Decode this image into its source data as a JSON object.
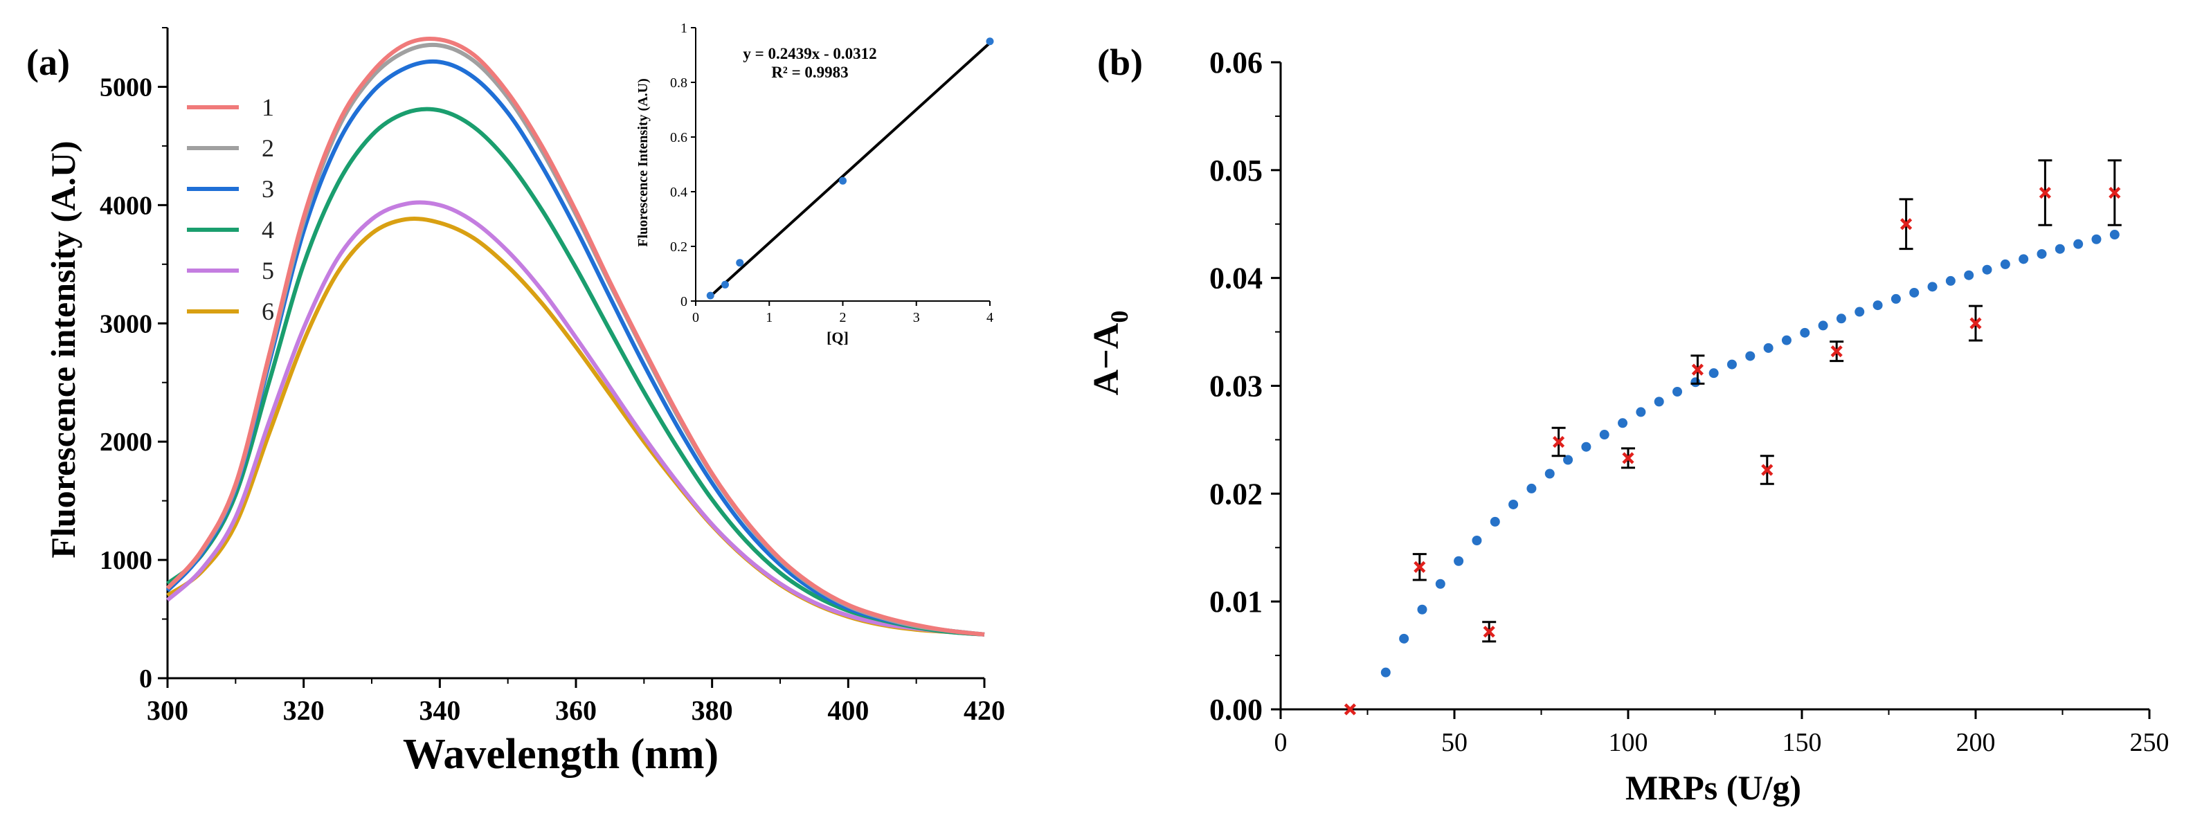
{
  "chart_data": [
    {
      "panel": "(a)",
      "type": "line",
      "title": "",
      "xlabel": "Wavelength (nm)",
      "ylabel": "Fluorescence intensity (A.U)",
      "xlim": [
        300,
        420
      ],
      "ylim": [
        0,
        5500
      ],
      "xticks": [
        300,
        320,
        340,
        360,
        380,
        400,
        420
      ],
      "yticks": [
        0,
        1000,
        2000,
        3000,
        4000,
        5000
      ],
      "legend_position": "top-left",
      "series": [
        {
          "name": "1",
          "color": "#f07a7a",
          "x": [
            300,
            305,
            310,
            315,
            320,
            325,
            330,
            335,
            340,
            345,
            350,
            355,
            360,
            365,
            370,
            375,
            380,
            385,
            390,
            395,
            400,
            405,
            410,
            415,
            420
          ],
          "values": [
            760,
            1080,
            1640,
            2750,
            3900,
            4680,
            5120,
            5360,
            5400,
            5270,
            4950,
            4500,
            3950,
            3350,
            2780,
            2230,
            1730,
            1330,
            1010,
            780,
            620,
            520,
            450,
            400,
            370
          ]
        },
        {
          "name": "2",
          "color": "#a0a0a0",
          "x": [
            300,
            305,
            310,
            315,
            320,
            325,
            330,
            335,
            340,
            345,
            350,
            355,
            360,
            365,
            370,
            375,
            380,
            385,
            390,
            395,
            400,
            405,
            410,
            415,
            420
          ],
          "values": [
            760,
            1070,
            1620,
            2720,
            3860,
            4640,
            5080,
            5300,
            5350,
            5220,
            4910,
            4460,
            3920,
            3330,
            2760,
            2210,
            1720,
            1320,
            1000,
            770,
            610,
            510,
            440,
            400,
            370
          ]
        },
        {
          "name": "3",
          "color": "#1f6fd6",
          "x": [
            300,
            305,
            310,
            315,
            320,
            325,
            330,
            335,
            340,
            345,
            350,
            355,
            360,
            365,
            370,
            375,
            380,
            385,
            390,
            395,
            400,
            405,
            410,
            415,
            420
          ],
          "values": [
            740,
            1050,
            1600,
            2680,
            3780,
            4520,
            4950,
            5160,
            5210,
            5080,
            4780,
            4330,
            3800,
            3220,
            2650,
            2120,
            1650,
            1260,
            960,
            740,
            590,
            500,
            440,
            400,
            370
          ]
        },
        {
          "name": "4",
          "color": "#1a9e6e",
          "x": [
            300,
            305,
            310,
            315,
            320,
            325,
            330,
            335,
            340,
            345,
            350,
            355,
            360,
            365,
            370,
            375,
            380,
            385,
            390,
            395,
            400,
            405,
            410,
            415,
            420
          ],
          "values": [
            800,
            1040,
            1550,
            2520,
            3500,
            4180,
            4590,
            4780,
            4800,
            4660,
            4370,
            3960,
            3470,
            2940,
            2420,
            1940,
            1510,
            1160,
            890,
            700,
            570,
            490,
            430,
            390,
            370
          ]
        },
        {
          "name": "5",
          "color": "#c47de0",
          "x": [
            300,
            305,
            310,
            315,
            320,
            325,
            330,
            335,
            340,
            345,
            350,
            355,
            360,
            365,
            370,
            375,
            380,
            385,
            390,
            395,
            400,
            405,
            410,
            415,
            420
          ],
          "values": [
            660,
            920,
            1360,
            2180,
            2960,
            3550,
            3880,
            4010,
            4000,
            3860,
            3610,
            3280,
            2880,
            2460,
            2040,
            1650,
            1300,
            1020,
            800,
            640,
            530,
            460,
            420,
            390,
            370
          ]
        },
        {
          "name": "6",
          "color": "#d9a012",
          "x": [
            300,
            305,
            310,
            315,
            320,
            325,
            330,
            335,
            340,
            345,
            350,
            355,
            360,
            365,
            370,
            375,
            380,
            385,
            390,
            395,
            400,
            405,
            410,
            415,
            420
          ],
          "values": [
            700,
            900,
            1300,
            2080,
            2850,
            3430,
            3760,
            3880,
            3850,
            3720,
            3480,
            3170,
            2800,
            2400,
            2000,
            1630,
            1290,
            1010,
            790,
            630,
            520,
            450,
            410,
            390,
            370
          ]
        }
      ],
      "inset": {
        "type": "scatter",
        "xlabel": "[Q]",
        "ylabel": "Fluorescence Intensity (A.U)",
        "xlim": [
          0,
          4
        ],
        "ylim": [
          0,
          1
        ],
        "xticks": [
          0,
          1,
          2,
          3,
          4
        ],
        "yticks": [
          0,
          0.2,
          0.4,
          0.6,
          0.8,
          1
        ],
        "x": [
          0.2,
          0.4,
          0.6,
          2.0,
          4.0
        ],
        "values": [
          0.02,
          0.06,
          0.14,
          0.44,
          0.95
        ],
        "point_color": "#2b78d0",
        "fit": {
          "slope": 0.2439,
          "intercept": -0.0312,
          "x_range": [
            0.2,
            4.0
          ]
        },
        "annotations": [
          "y = 0.2439x - 0.0312",
          "R² = 0.9983"
        ]
      }
    },
    {
      "panel": "(b)",
      "type": "scatter",
      "title": "",
      "xlabel": "MRPs (U/g)",
      "ylabel": "A−A",
      "ylabel_subscript": "0",
      "xlim": [
        0,
        250
      ],
      "ylim": [
        0,
        0.06
      ],
      "xticks": [
        0,
        50,
        100,
        150,
        200,
        250
      ],
      "yticks": [
        0.0,
        0.01,
        0.02,
        0.03,
        0.04,
        0.05,
        0.06
      ],
      "ytick_labels": [
        "0.00",
        "0.01",
        "0.02",
        "0.03",
        "0.04",
        "0.05",
        "0.06"
      ],
      "x": [
        20,
        40,
        60,
        80,
        100,
        120,
        140,
        160,
        180,
        200,
        220,
        240
      ],
      "values": [
        0.0,
        0.0132,
        0.0072,
        0.0248,
        0.0233,
        0.0315,
        0.0222,
        0.0332,
        0.045,
        0.0358,
        0.0479,
        0.0479
      ],
      "errors": [
        0.0,
        0.0012,
        0.0009,
        0.0013,
        0.0009,
        0.0013,
        0.0013,
        0.0009,
        0.0023,
        0.0016,
        0.003,
        0.003
      ],
      "marker_color": "#e0201c",
      "fit": {
        "type": "logarithmic",
        "a": 0.0196,
        "b": -0.0634,
        "x_range": [
          25,
          240
        ],
        "n_dots": 42,
        "color": "#2672c8"
      }
    }
  ]
}
